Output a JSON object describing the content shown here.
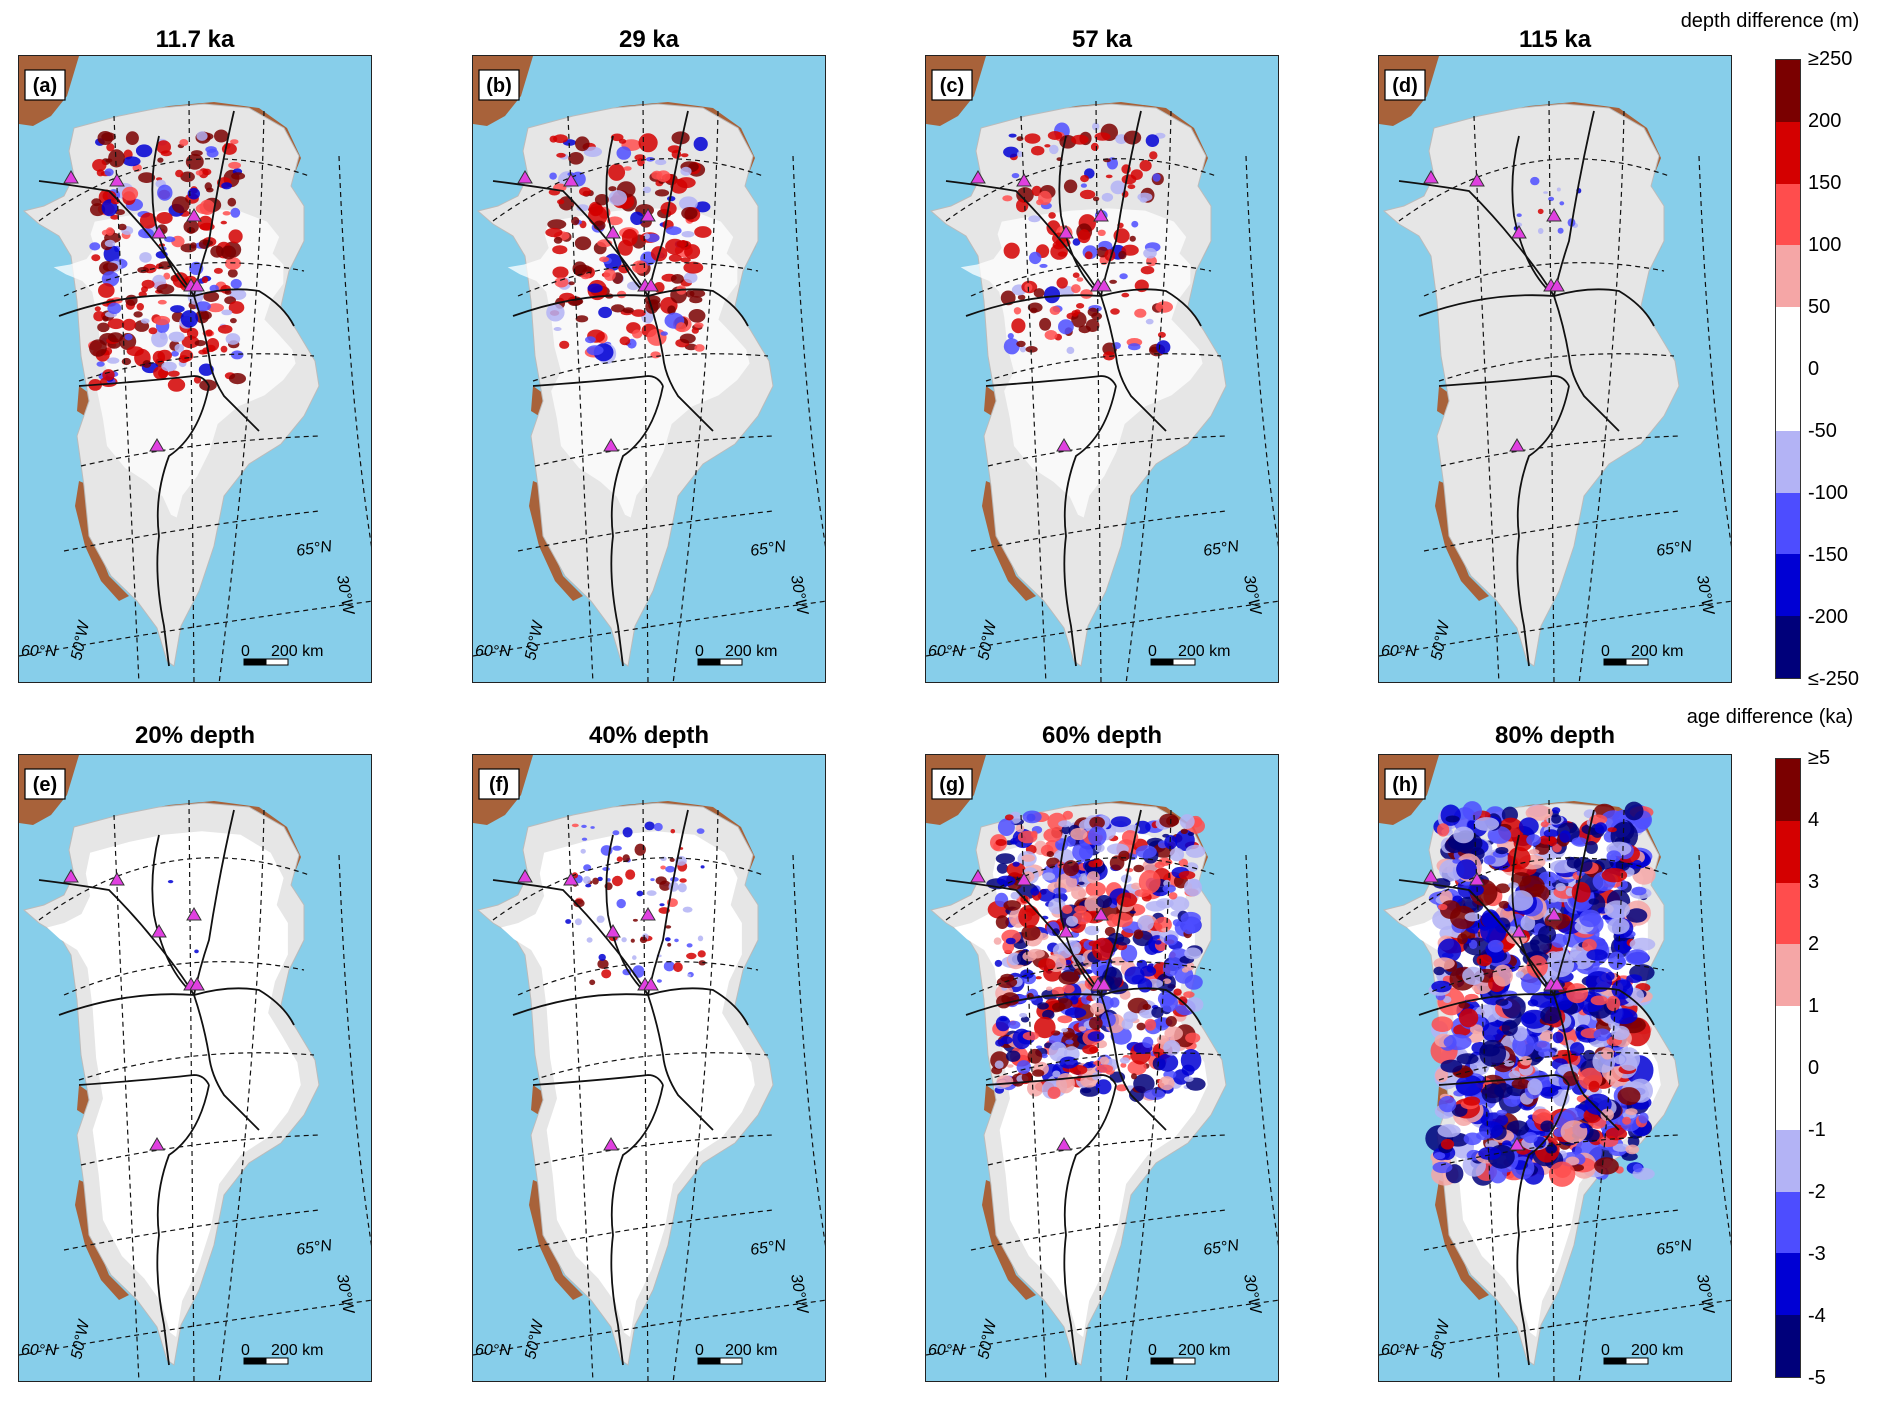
{
  "rows": [
    {
      "panels": [
        {
          "label": "(a)",
          "title": "11.7 ka",
          "variant": "a"
        },
        {
          "label": "(b)",
          "title": "29 ka",
          "variant": "b"
        },
        {
          "label": "(c)",
          "title": "57 ka",
          "variant": "c"
        },
        {
          "label": "(d)",
          "title": "115 ka",
          "variant": "d"
        }
      ],
      "colorbar": {
        "title": "depth difference (m)",
        "ticks": [
          "≥250",
          "200",
          "150",
          "100",
          "50",
          "0",
          "-50",
          "-100",
          "-150",
          "-200",
          "≤-250"
        ]
      }
    },
    {
      "panels": [
        {
          "label": "(e)",
          "title": "20% depth",
          "variant": "e"
        },
        {
          "label": "(f)",
          "title": "40% depth",
          "variant": "f"
        },
        {
          "label": "(g)",
          "title": "60% depth",
          "variant": "g"
        },
        {
          "label": "(h)",
          "title": "80% depth",
          "variant": "h"
        }
      ],
      "colorbar": {
        "title": "age difference (ka)",
        "ticks": [
          "≥5",
          "4",
          "3",
          "2",
          "1",
          "0",
          "-1",
          "-2",
          "-3",
          "-4",
          "-5"
        ]
      }
    }
  ],
  "map_labels": {
    "lat_65": "65°N",
    "lat_60": "60°N",
    "lon_50": "50°W",
    "lon_30": "30°W",
    "scale_zero": "0",
    "scale_len": "200 km"
  },
  "colors": {
    "ocean": "#87ceea",
    "ice": "#e6e6e6",
    "land": "#a8623a",
    "marker": "#e040e0",
    "colorbar": [
      "#7a0000",
      "#d40000",
      "#ff4d4d",
      "#f5a6a6",
      "#ffffff",
      "#ffffff",
      "#b3b3f5",
      "#4d4dff",
      "#0000d4",
      "#00007a"
    ]
  }
}
